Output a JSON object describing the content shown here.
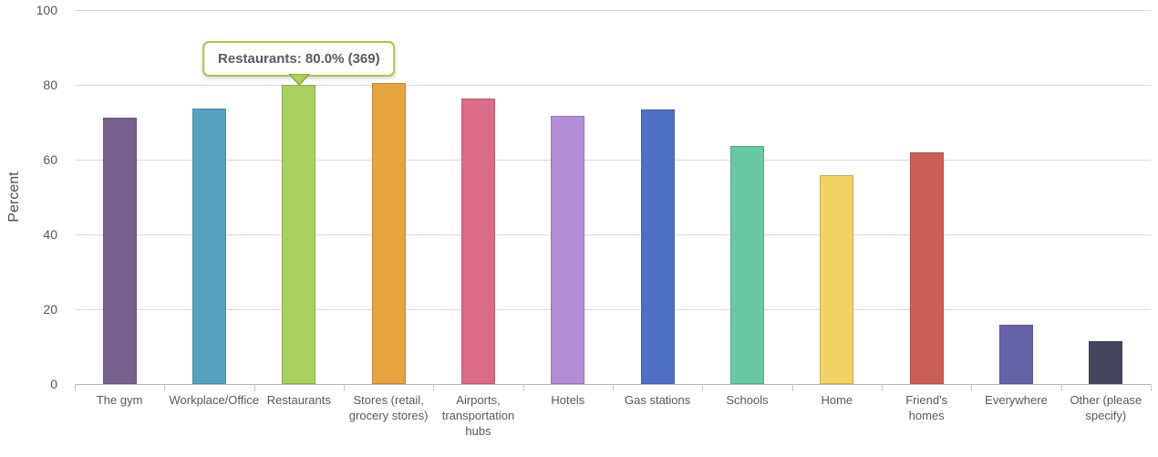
{
  "chart_data": {
    "type": "bar",
    "title": "",
    "xlabel": "",
    "ylabel": "Percent",
    "ylim": [
      0,
      100
    ],
    "yticks": [
      0,
      20,
      40,
      60,
      80,
      100
    ],
    "grid": true,
    "legend": false,
    "categories": [
      "The gym",
      "Workplace/Office",
      "Restaurants",
      "Stores (retail, grocery stores)",
      "Airports, transportation hubs",
      "Hotels",
      "Gas stations",
      "Schools",
      "Home",
      "Friend's homes",
      "Everywhere",
      "Other (please specify)"
    ],
    "values": [
      71.2,
      73.7,
      80.0,
      80.4,
      76.4,
      71.8,
      73.4,
      63.6,
      55.8,
      61.9,
      15.9,
      11.5
    ],
    "bar_colors": [
      "#76608D",
      "#57A2C1",
      "#A8D15E",
      "#E6A33E",
      "#DB6B87",
      "#B18DD8",
      "#4D6FC4",
      "#68C8A3",
      "#F2D264",
      "#CB5F55",
      "#6662A8",
      "#43465C"
    ],
    "annotation": {
      "text": "Restaurants: 80.0% (369)",
      "target_category": "Restaurants",
      "value_percent": 80.0,
      "count": 369
    }
  },
  "style": {
    "grid_color": "#d9d9d9",
    "axis_color": "#b3b6bc",
    "tick_label_color": "#55585e",
    "tooltip_border": "#a6c84f",
    "tooltip_bg": "#fdfef9",
    "tooltip_text": "#575c66"
  }
}
